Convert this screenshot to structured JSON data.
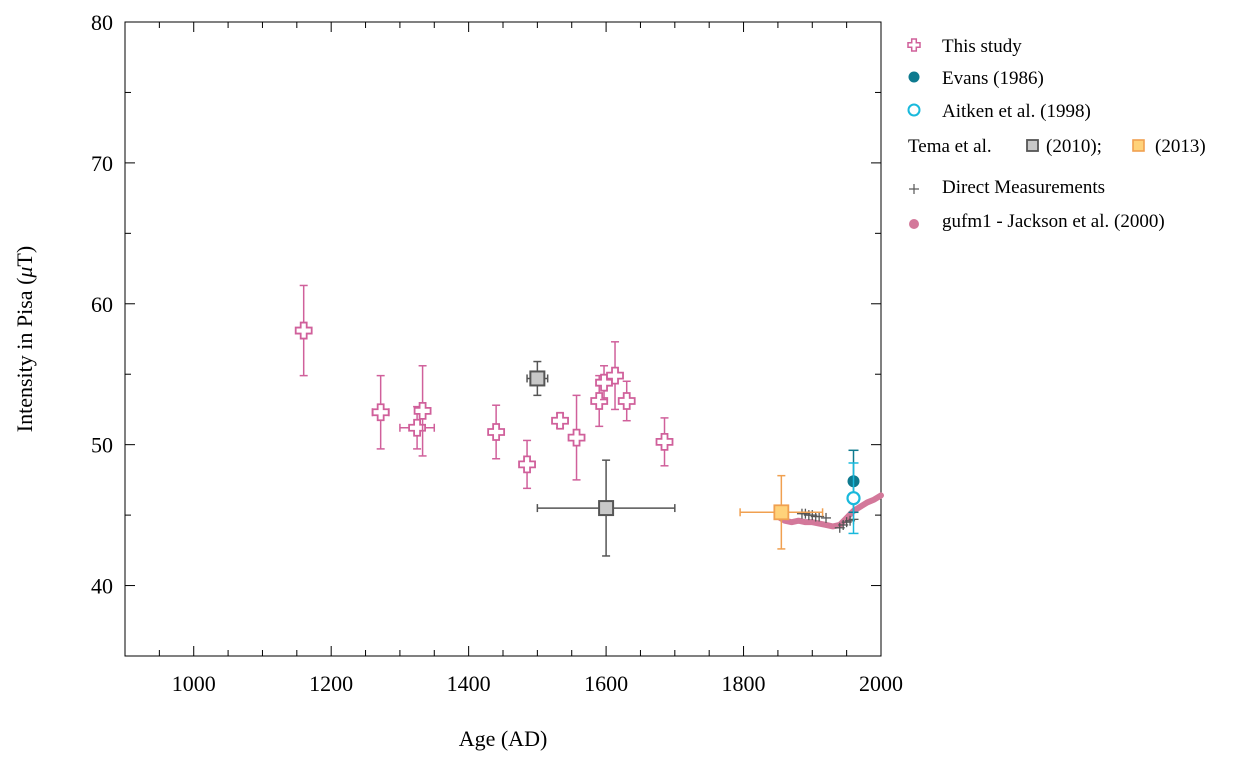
{
  "chart_data": {
    "type": "scatter",
    "xlabel": "Age (AD)",
    "ylabel_main": "Intensity in Pisa (",
    "ylabel_mu": "μ",
    "ylabel_unit": "T)",
    "xlim": [
      900,
      2000
    ],
    "ylim": [
      35,
      80
    ],
    "xticks": [
      1000,
      1200,
      1400,
      1600,
      1800,
      2000
    ],
    "yticks": [
      40,
      50,
      60,
      70,
      80
    ],
    "grid": false,
    "legend_position": "outside-right",
    "colors": {
      "this_study": "#d0609b",
      "evans": "#0e7a8f",
      "aitken": "#19b9dc",
      "tema2010_edge": "#555555",
      "tema2010_fill": "#c8c8c8",
      "tema2013_edge": "#f0a050",
      "tema2013_fill": "#ffd27a",
      "direct": "#555555",
      "gufm1": "#d3789a"
    },
    "legend": {
      "this_study": "This study",
      "evans": "Evans (1986)",
      "aitken": "Aitken et al. (1998)",
      "tema_prefix": "Tema et al.",
      "tema_2010": "(2010);",
      "tema_2013": "(2013)",
      "direct": "Direct Measurements",
      "gufm1": "gufm1 - Jackson et al. (2000)"
    },
    "this_study": [
      {
        "x": 1160,
        "y": 58.1,
        "yerr": 3.2,
        "xerr": 0
      },
      {
        "x": 1272,
        "y": 52.3,
        "yerr": 2.6,
        "xerr": 12
      },
      {
        "x": 1325,
        "y": 51.2,
        "yerr": 1.5,
        "xerr": 25
      },
      {
        "x": 1333,
        "y": 52.4,
        "yerr": 3.2,
        "xerr": 0
      },
      {
        "x": 1440,
        "y": 50.9,
        "yerr": 1.9,
        "xerr": 0
      },
      {
        "x": 1485,
        "y": 48.6,
        "yerr": 1.7,
        "xerr": 0
      },
      {
        "x": 1533,
        "y": 51.7,
        "yerr": 0.5,
        "xerr": 0
      },
      {
        "x": 1557,
        "y": 50.5,
        "yerr": 3.0,
        "xerr": 0
      },
      {
        "x": 1590,
        "y": 53.1,
        "yerr": 1.8,
        "xerr": 0
      },
      {
        "x": 1597,
        "y": 54.4,
        "yerr": 1.2,
        "xerr": 0
      },
      {
        "x": 1613,
        "y": 54.9,
        "yerr": 2.4,
        "xerr": 0
      },
      {
        "x": 1630,
        "y": 53.1,
        "yerr": 1.4,
        "xerr": 0
      },
      {
        "x": 1685,
        "y": 50.2,
        "yerr": 1.7,
        "xerr": 0
      }
    ],
    "evans": [
      {
        "x": 1960,
        "y": 47.4,
        "yerr": 2.2
      }
    ],
    "aitken": [
      {
        "x": 1960,
        "y": 46.2,
        "yerr": 2.5
      }
    ],
    "tema_2010": [
      {
        "x": 1500,
        "y": 54.7,
        "yerr": 1.2,
        "xerr": 15
      },
      {
        "x": 1600,
        "y": 45.5,
        "yerr": 3.4,
        "xerr": 100
      }
    ],
    "tema_2013": [
      {
        "x": 1855,
        "y": 45.2,
        "yerr": 2.6,
        "xerr": 60
      }
    ],
    "direct": [
      {
        "x": 1885,
        "y": 45.1
      },
      {
        "x": 1890,
        "y": 45.1
      },
      {
        "x": 1895,
        "y": 45.0
      },
      {
        "x": 1900,
        "y": 45.0
      },
      {
        "x": 1905,
        "y": 44.9
      },
      {
        "x": 1910,
        "y": 44.9
      },
      {
        "x": 1920,
        "y": 44.8
      },
      {
        "x": 1940,
        "y": 44.1
      },
      {
        "x": 1945,
        "y": 44.3
      },
      {
        "x": 1950,
        "y": 44.5
      },
      {
        "x": 1955,
        "y": 44.6
      },
      {
        "x": 1960,
        "y": 44.7
      }
    ],
    "gufm1": {
      "x": [
        1850,
        1860,
        1870,
        1880,
        1890,
        1900,
        1910,
        1920,
        1930,
        1940,
        1950,
        1960,
        1970,
        1980,
        1990,
        2000
      ],
      "y": [
        44.9,
        44.6,
        44.5,
        44.6,
        44.5,
        44.5,
        44.4,
        44.3,
        44.2,
        44.3,
        44.8,
        45.3,
        45.6,
        45.9,
        46.1,
        46.4
      ]
    }
  }
}
